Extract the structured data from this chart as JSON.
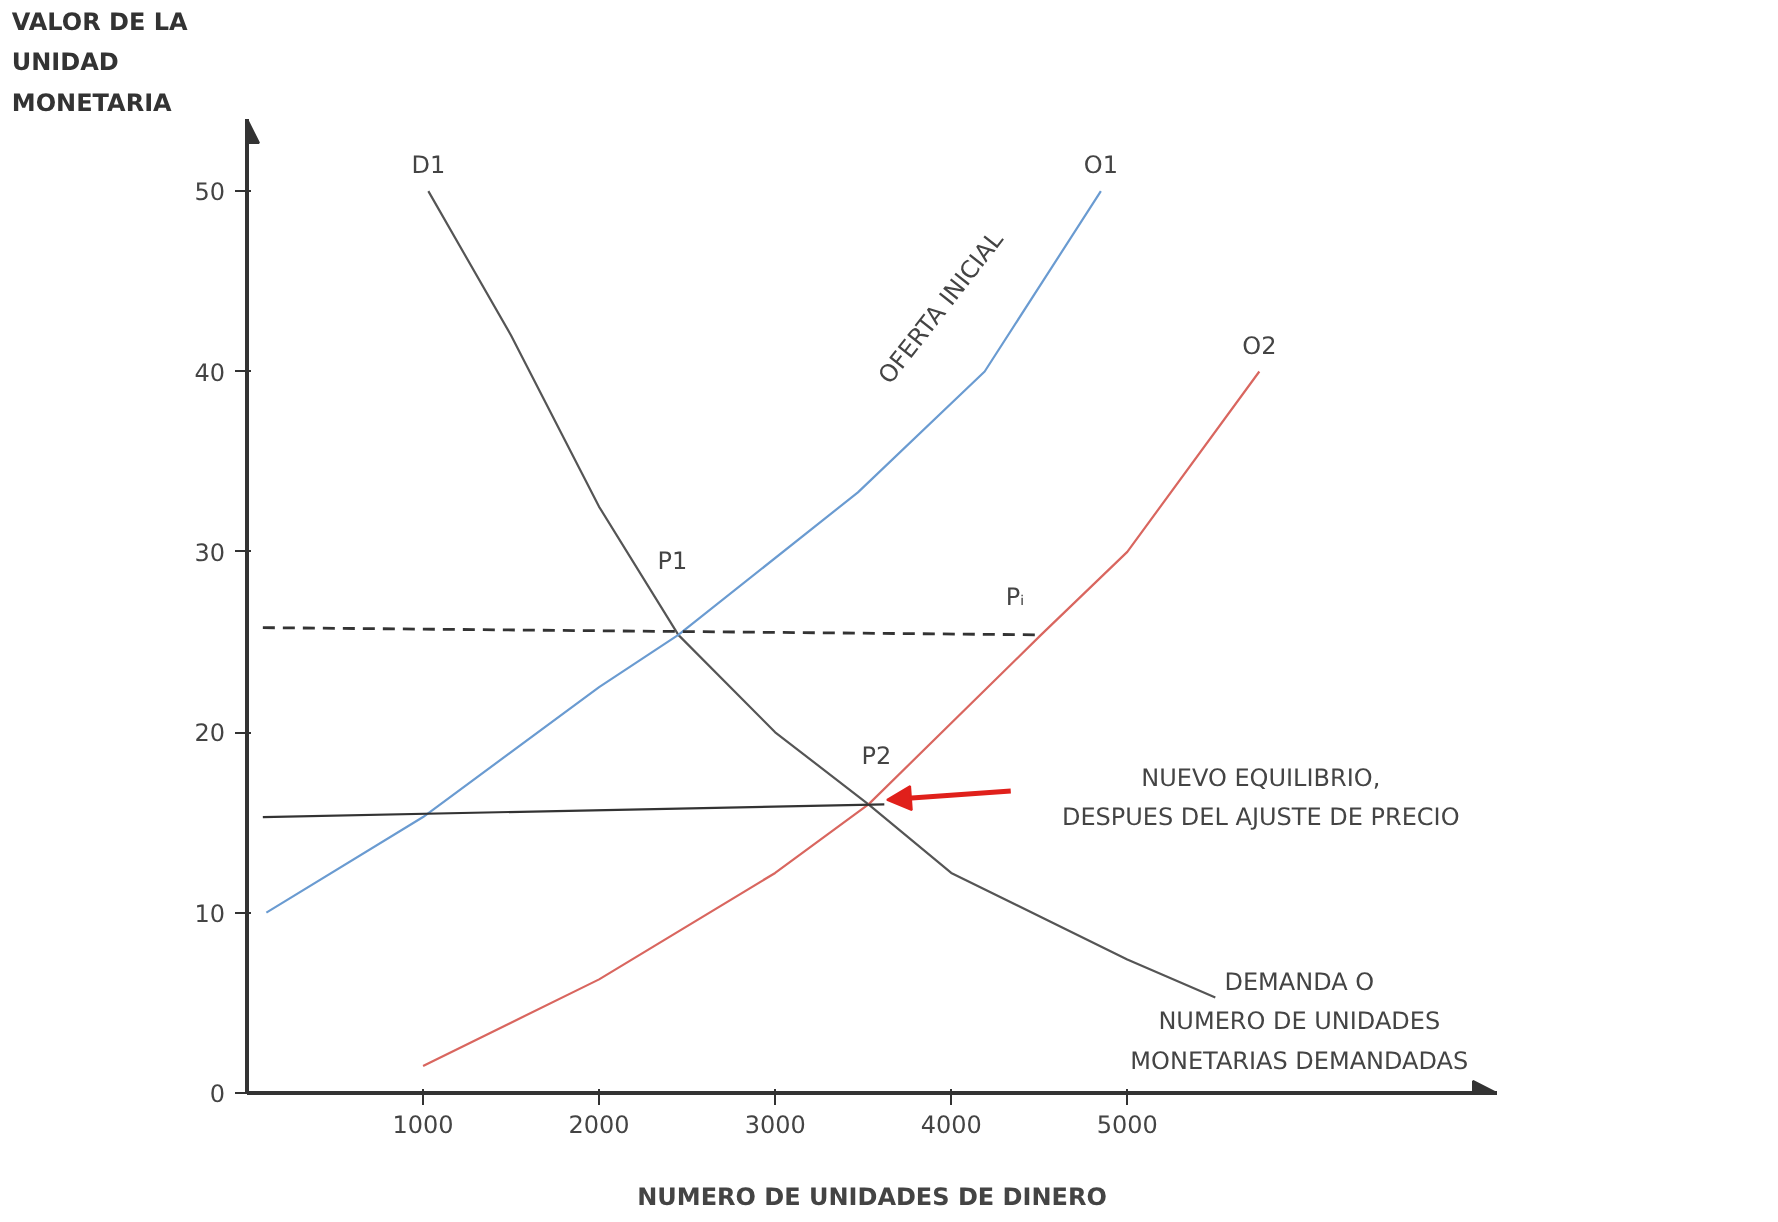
{
  "chart_data": {
    "type": "line",
    "xlabel": "NUMERO DE UNIDADES DE DINERO",
    "ylabel": "VALOR DE LA\nUNIDAD\nMONETARIA",
    "xlim": [
      0,
      7100
    ],
    "ylim": [
      0,
      54
    ],
    "xticks": [
      1000,
      2000,
      3000,
      4000,
      5000
    ],
    "yticks": [
      0,
      10,
      20,
      30,
      40,
      50
    ],
    "grid": false,
    "marker": "none",
    "series": [
      {
        "name": "D1",
        "color": "#555555",
        "x": [
          1030,
          1500,
          2000,
          2450,
          3000,
          3530,
          4000,
          5000,
          5500
        ],
        "values": [
          50,
          42,
          32.5,
          25.4,
          20,
          16,
          12.2,
          7.4,
          5.3
        ]
      },
      {
        "name": "O1",
        "color": "#6a9bd1",
        "x": [
          110,
          1000,
          2000,
          2450,
          3470,
          4190,
          4850
        ],
        "values": [
          10,
          15.3,
          22.5,
          25.4,
          33.3,
          40,
          50
        ]
      },
      {
        "name": "O2",
        "color": "#d9665f",
        "x": [
          1000,
          2000,
          3000,
          3530,
          4510,
          5000,
          5750
        ],
        "values": [
          1.5,
          6.3,
          12.2,
          16,
          25.4,
          30,
          40
        ]
      },
      {
        "color": "#333333",
        "line_style": "dashed",
        "x": [
          90,
          4510
        ],
        "values": [
          25.8,
          25.4
        ]
      },
      {
        "color": "#333333",
        "x": [
          90,
          3620
        ],
        "values": [
          15.3,
          16
        ]
      }
    ],
    "annotations": [
      {
        "text": "P1",
        "x": 2450,
        "y": 25.4
      },
      {
        "text": "P2",
        "x": 3530,
        "y": 16
      },
      {
        "text": "Pᵢ",
        "x": 4510,
        "y": 25.4
      },
      {
        "text": "OFERTA INICIAL",
        "x": 4190,
        "y": 40
      },
      "NUEVO EQUILIBRIO,\nDESPUES DEL AJUSTE DE PRECIO",
      {
        "text": "DEMANDA O\nNUMERO DE UNIDADES\nMONETARIAS DEMANDADAS",
        "x": 5500,
        "y": 5.3
      }
    ]
  }
}
